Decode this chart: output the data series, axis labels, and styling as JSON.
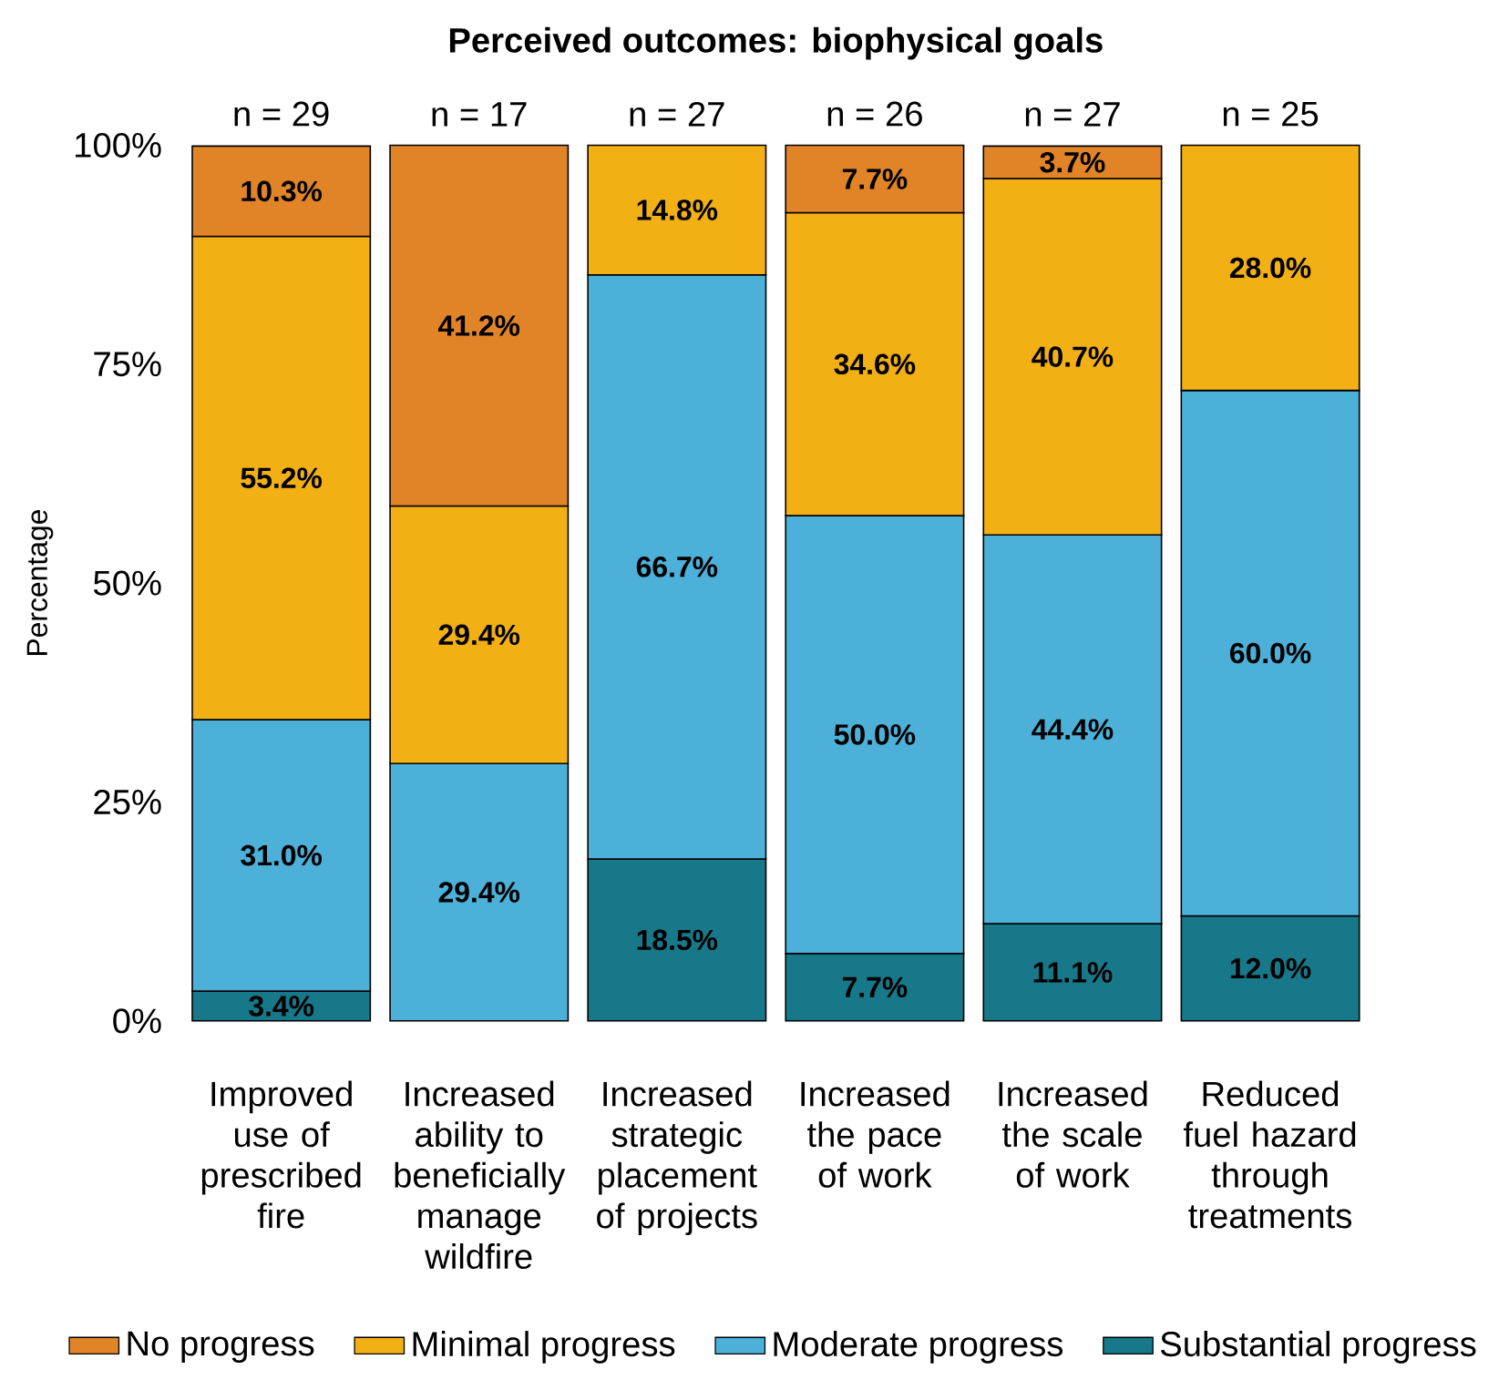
{
  "chart_data": {
    "type": "bar",
    "stacked": true,
    "title": "Perceived outcomes: biophysical goals",
    "ylabel": "Percentage",
    "categories": [
      "Improved use of prescribed fire",
      "Increased ability to beneficially manage wildfire",
      "Increased strategic placement of projects",
      "Increased the pace of work",
      "Increased the scale of work",
      "Reduced fuel hazard through treatments"
    ],
    "series": [
      {
        "name": "Substantial progress",
        "color": "#17788a",
        "values": [
          3.4,
          null,
          18.5,
          7.7,
          11.1,
          12.0
        ],
        "value_labels": [
          "3.4%",
          null,
          "18.5%",
          "7.7%",
          "11.1%",
          "12.0%"
        ]
      },
      {
        "name": "Moderate progress",
        "color": "#4cb0d8",
        "values": [
          31.0,
          29.4,
          66.7,
          50.0,
          44.4,
          60.0
        ],
        "value_labels": [
          "31.0%",
          "29.4%",
          "66.7%",
          "50.0%",
          "44.4%",
          "60.0%"
        ]
      },
      {
        "name": "Minimal progress",
        "color": "#f2b015",
        "values": [
          55.2,
          29.4,
          14.8,
          34.6,
          40.7,
          28.0
        ],
        "value_labels": [
          "55.2%",
          "29.4%",
          "14.8%",
          "34.6%",
          "40.7%",
          "28.0%"
        ]
      },
      {
        "name": "No progress",
        "color": "#e08427",
        "values": [
          10.3,
          41.2,
          null,
          7.7,
          3.7,
          null
        ],
        "value_labels": [
          "10.3%",
          "41.2%",
          null,
          "7.7%",
          "3.7%",
          null
        ]
      }
    ],
    "ylim": [
      0,
      100
    ],
    "yticks": [
      {
        "value": 0,
        "label": "0%"
      },
      {
        "value": 25,
        "label": "25%"
      },
      {
        "value": 50,
        "label": "50%"
      },
      {
        "value": 75,
        "label": "75%"
      },
      {
        "value": 100,
        "label": "100%"
      }
    ],
    "annotations": [
      {
        "text": "n = 29",
        "x": "Improved use of prescribed fire",
        "y": 100
      },
      {
        "text": "n = 17",
        "x": "Increased ability to beneficially manage wildfire",
        "y": 100
      },
      {
        "text": "n = 27",
        "x": "Increased strategic placement of projects",
        "y": 100
      },
      {
        "text": "n = 26",
        "x": "Increased the pace of work",
        "y": 100
      },
      {
        "text": "n = 27",
        "x": "Increased the scale of work",
        "y": 100
      },
      {
        "text": "n = 25",
        "x": "Reduced fuel hazard through treatments",
        "y": 100
      }
    ],
    "legend": "bottom",
    "grid": false
  }
}
